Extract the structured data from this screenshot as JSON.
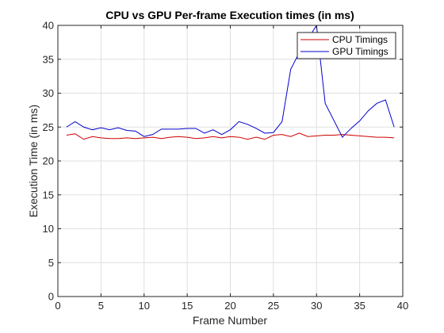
{
  "chart_data": {
    "type": "line",
    "title": "CPU vs GPU Per-frame Execution times (in ms)",
    "xlabel": "Frame Number",
    "ylabel": "Execution Time (in ms)",
    "xlim": [
      0,
      40
    ],
    "ylim": [
      0,
      40
    ],
    "xticks": [
      0,
      5,
      10,
      15,
      20,
      25,
      30,
      35,
      40
    ],
    "yticks": [
      0,
      5,
      10,
      15,
      20,
      25,
      30,
      35,
      40
    ],
    "grid": true,
    "legend_position": "top-right",
    "x": [
      1,
      2,
      3,
      4,
      5,
      6,
      7,
      8,
      9,
      10,
      11,
      12,
      13,
      14,
      15,
      16,
      17,
      18,
      19,
      20,
      21,
      22,
      23,
      24,
      25,
      26,
      27,
      28,
      29,
      30,
      31,
      32,
      33,
      34,
      35,
      36,
      37,
      38,
      39
    ],
    "series": [
      {
        "name": "CPU Timings",
        "color": "#cc0000",
        "values": [
          23.8,
          24.0,
          23.2,
          23.6,
          23.4,
          23.3,
          23.3,
          23.4,
          23.3,
          23.4,
          23.5,
          23.3,
          23.5,
          23.6,
          23.5,
          23.3,
          23.4,
          23.6,
          23.4,
          23.6,
          23.5,
          23.2,
          23.5,
          23.2,
          23.8,
          23.9,
          23.6,
          24.1,
          23.6,
          23.7,
          23.8,
          23.8,
          23.9,
          23.8,
          23.7,
          23.6,
          23.5,
          23.5,
          23.4
        ]
      },
      {
        "name": "GPU Timings",
        "color": "#0000cc",
        "values": [
          25.0,
          25.8,
          25.0,
          24.6,
          24.9,
          24.6,
          24.9,
          24.5,
          24.4,
          23.6,
          23.9,
          24.7,
          24.7,
          24.7,
          24.8,
          24.8,
          24.1,
          24.6,
          23.9,
          24.6,
          25.8,
          25.4,
          24.8,
          24.1,
          24.2,
          25.8,
          33.5,
          36.0,
          38.0,
          40.0,
          28.5,
          26.0,
          23.5,
          24.8,
          25.9,
          27.4,
          28.5,
          29.0,
          25.0
        ]
      }
    ]
  }
}
